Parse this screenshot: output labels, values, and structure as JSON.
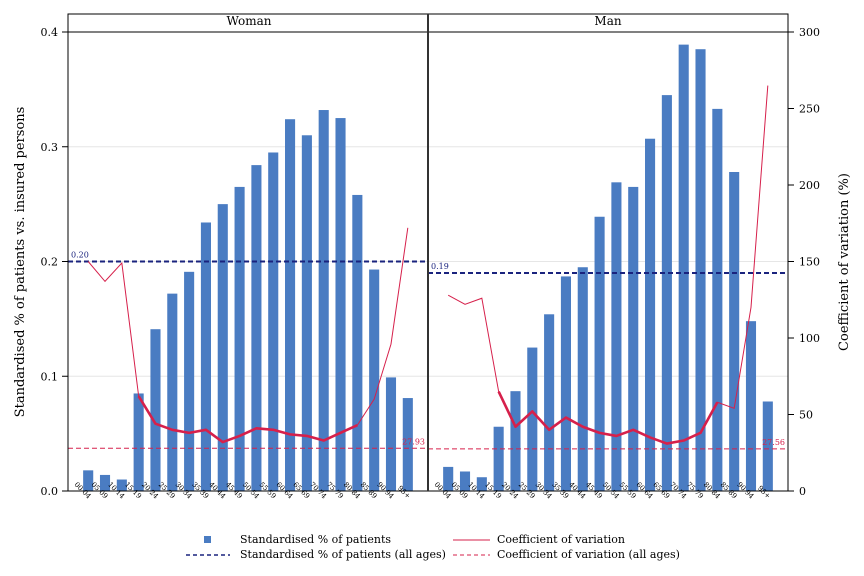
{
  "chart_data": {
    "type": "bar",
    "y_left_label": "Standardised % of patients vs. insured persons",
    "y_right_label": "Coefficient of variation (%)",
    "y_left_ticks": [
      "0.0",
      "0.1",
      "0.2",
      "0.3",
      "0.4"
    ],
    "y_right_ticks": [
      "0",
      "50",
      "100",
      "150",
      "200",
      "250",
      "300"
    ],
    "ylim_left": [
      0,
      0.4
    ],
    "ylim_right": [
      0,
      300
    ],
    "categories": [
      "00 04",
      "05 09",
      "10 14",
      "15 19",
      "20 24",
      "25 29",
      "30 34",
      "35 39",
      "40 44",
      "45 49",
      "50 54",
      "55 59",
      "60 64",
      "65 69",
      "70 74",
      "75 79",
      "80 84",
      "85 89",
      "90 94",
      "95+"
    ],
    "panels": [
      {
        "title": "Woman",
        "bars": [
          0.018,
          0.014,
          0.01,
          0.085,
          0.141,
          0.172,
          0.191,
          0.234,
          0.25,
          0.265,
          0.284,
          0.295,
          0.324,
          0.31,
          0.332,
          0.325,
          0.258,
          0.193,
          0.099,
          0.081
        ],
        "cv": [
          null,
          null,
          null,
          62,
          44,
          40,
          38,
          40,
          32,
          36,
          41,
          40,
          37,
          36,
          33,
          38,
          43,
          60,
          96,
          172
        ],
        "cv_early": [
          150,
          137,
          149
        ],
        "ref_pct_value": 0.2,
        "ref_pct_label": "0.20",
        "ref_cv_value": 27.93,
        "ref_cv_label": "27.93"
      },
      {
        "title": "Man",
        "bars": [
          0.021,
          0.017,
          0.012,
          0.056,
          0.087,
          0.125,
          0.154,
          0.187,
          0.195,
          0.239,
          0.269,
          0.265,
          0.307,
          0.345,
          0.389,
          0.385,
          0.333,
          0.278,
          0.148,
          0.078
        ],
        "cv": [
          null,
          null,
          null,
          65,
          42,
          52,
          40,
          48,
          42,
          38,
          36,
          40,
          35,
          31,
          33,
          38,
          58,
          54,
          120,
          265
        ],
        "cv_early": [
          128,
          122,
          126
        ],
        "ref_pct_value": 0.19,
        "ref_pct_label": "0.19",
        "ref_cv_value": 27.56,
        "ref_cv_label": "27.56"
      }
    ],
    "legend": {
      "bars": "Standardised % of patients",
      "cv": "Coefficient of variation",
      "ref_pct": "Standardised % of patients (all ages)",
      "ref_cv": "Coefficient of variation (all ages)"
    },
    "colors": {
      "bar": "#4a7cc2",
      "cv": "#d6204b",
      "ref_pct": "#1a237e",
      "ref_cv": "#d6204b",
      "grid": "#e6e6e6"
    }
  }
}
